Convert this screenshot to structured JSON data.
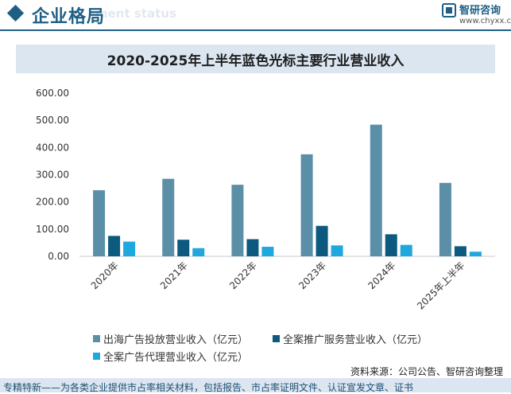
{
  "header": {
    "title": "企业格局",
    "subtitle": "ment status",
    "logo_name": "智研咨询",
    "logo_url": "www.chyxx.com"
  },
  "colors": {
    "series1": "#5b8fa8",
    "series2": "#0d5a80",
    "series3": "#1ea8de",
    "accent": "#1f5f85"
  },
  "chart_data": {
    "type": "bar",
    "title": "2020-2025年上半年蓝色光标主要行业营业收入",
    "categories": [
      "2020年",
      "2021年",
      "2022年",
      "2023年",
      "2024年",
      "2025年上半年"
    ],
    "series": [
      {
        "name": "出海广告投放营业收入（亿元）",
        "values": [
          243,
          285,
          263,
          375,
          484,
          270
        ]
      },
      {
        "name": "全案推广服务营业收入（亿元）",
        "values": [
          75,
          61,
          63,
          112,
          81,
          37
        ]
      },
      {
        "name": "全案广告代理营业收入（亿元）",
        "values": [
          54,
          30,
          35,
          40,
          42,
          17
        ]
      }
    ],
    "ylim": [
      0,
      600
    ],
    "yticks": [
      "0.00",
      "100.00",
      "200.00",
      "300.00",
      "400.00",
      "500.00",
      "600.00"
    ],
    "xlabel": "",
    "ylabel": "",
    "legend": "bottom-left",
    "grid": false
  },
  "footer": {
    "source": "资料来源：公司公告、智研咨询整理",
    "tagline": "专精特新——为各类企业提供市占率相关材料，包括报告、市占率证明文件、认证宣发文章、证书"
  }
}
